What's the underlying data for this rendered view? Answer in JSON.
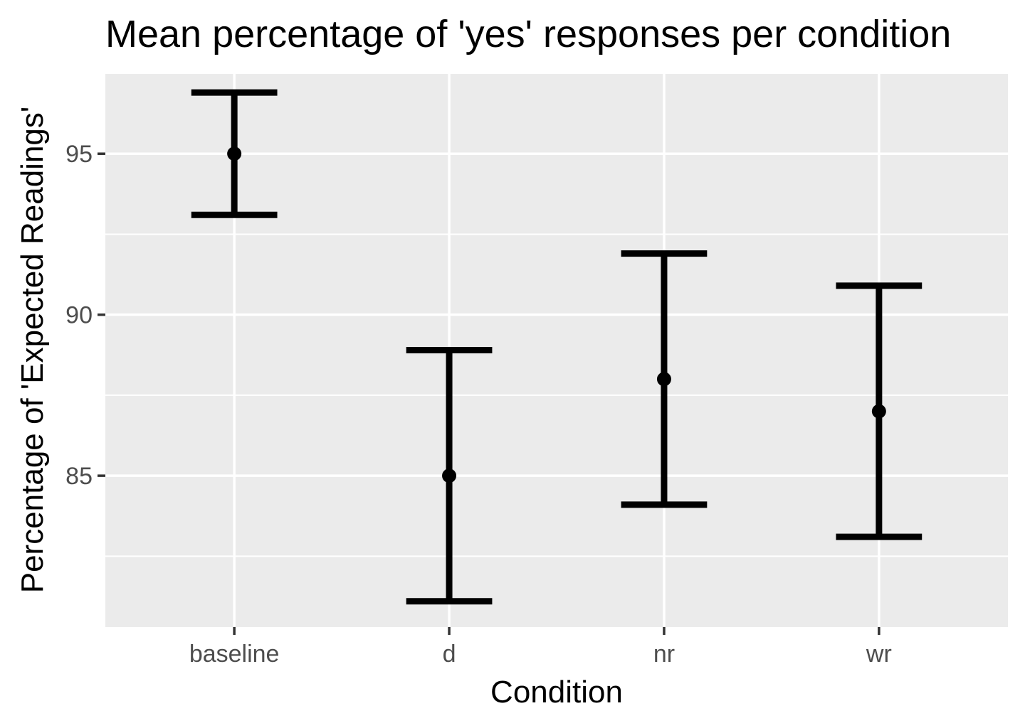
{
  "chart_data": {
    "type": "errorbar",
    "title": "Mean percentage of 'yes' responses per condition",
    "xlabel": "Condition",
    "ylabel": "Percentage of 'Expected Readings'",
    "categories": [
      "baseline",
      "d",
      "nr",
      "wr"
    ],
    "means": [
      95,
      85,
      88,
      87
    ],
    "lower": [
      93.1,
      81.1,
      84.1,
      83.1
    ],
    "upper": [
      96.9,
      88.9,
      91.9,
      90.9
    ],
    "yticks": [
      85,
      90,
      95
    ],
    "ylim": [
      80.3,
      97.5
    ],
    "grid": true,
    "panel_background": "#ebebeb",
    "grid_color": "#ffffff",
    "mark_color": "#000000"
  }
}
